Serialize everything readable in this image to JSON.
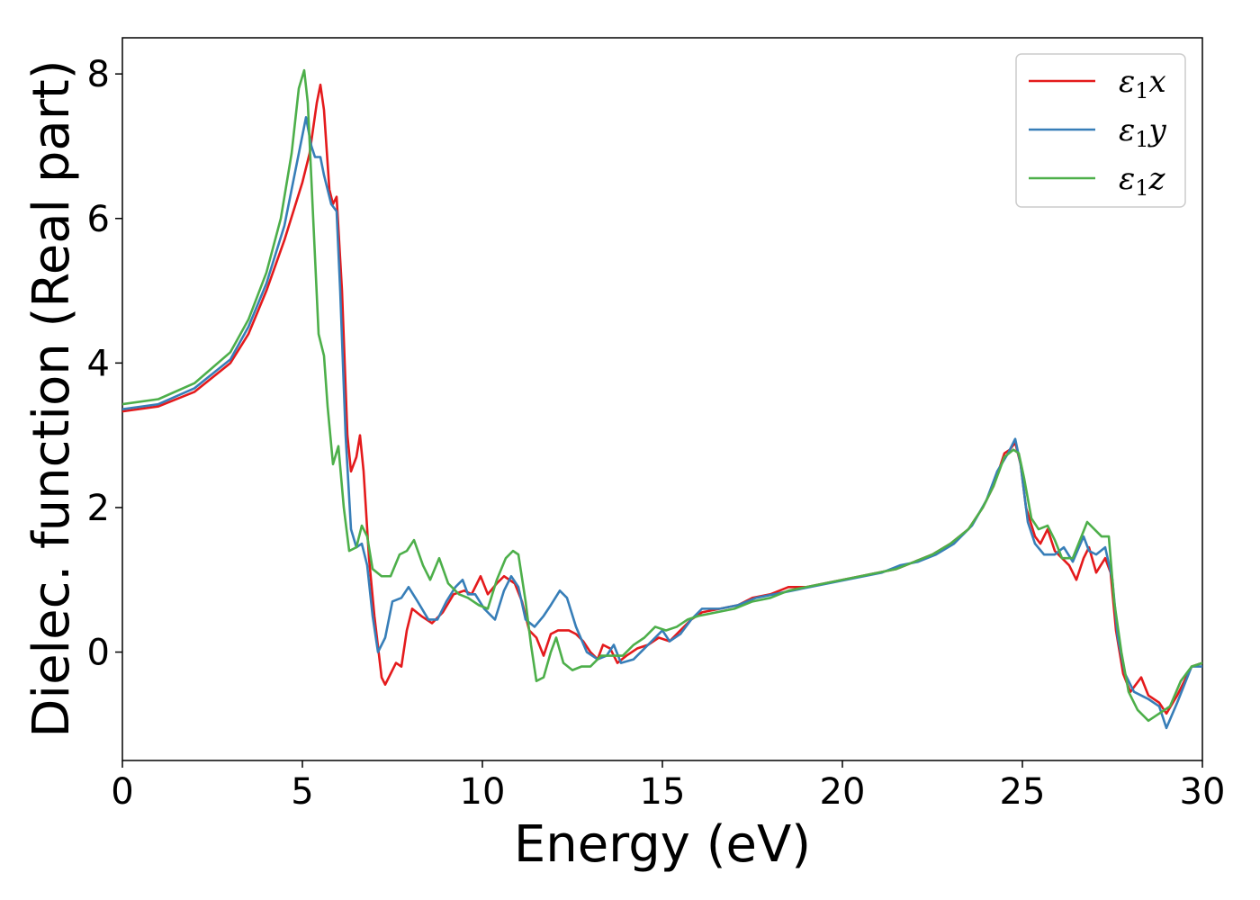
{
  "chart_data": {
    "type": "line",
    "title": "",
    "xlabel": "Energy (eV)",
    "ylabel": "Dielec. function (Real part)",
    "xlim": [
      0,
      30
    ],
    "ylim": [
      -1.5,
      8.5
    ],
    "xticks": [
      0,
      5,
      10,
      15,
      20,
      25,
      30
    ],
    "xtick_labels": [
      "0",
      "5",
      "10",
      "15",
      "20",
      "25",
      "30"
    ],
    "yticks": [
      0,
      2,
      4,
      6,
      8
    ],
    "ytick_labels": [
      "0",
      "2",
      "4",
      "6",
      "8"
    ],
    "grid": false,
    "legend_position": "top-right",
    "series": [
      {
        "name": "ε1x",
        "base": "ε",
        "sub": "1",
        "suffix": "x",
        "color": "#e41a1c",
        "points": [
          [
            0,
            3.33
          ],
          [
            1,
            3.4
          ],
          [
            2,
            3.6
          ],
          [
            3,
            4.0
          ],
          [
            3.5,
            4.4
          ],
          [
            4,
            5.0
          ],
          [
            4.5,
            5.7
          ],
          [
            5,
            6.5
          ],
          [
            5.2,
            6.9
          ],
          [
            5.4,
            7.6
          ],
          [
            5.5,
            7.85
          ],
          [
            5.6,
            7.5
          ],
          [
            5.75,
            6.4
          ],
          [
            5.85,
            6.2
          ],
          [
            5.95,
            6.3
          ],
          [
            6.1,
            5.0
          ],
          [
            6.25,
            3.0
          ],
          [
            6.35,
            2.5
          ],
          [
            6.5,
            2.7
          ],
          [
            6.6,
            3.0
          ],
          [
            6.7,
            2.5
          ],
          [
            6.85,
            1.3
          ],
          [
            7.0,
            0.5
          ],
          [
            7.2,
            -0.35
          ],
          [
            7.3,
            -0.45
          ],
          [
            7.45,
            -0.3
          ],
          [
            7.6,
            -0.15
          ],
          [
            7.75,
            -0.2
          ],
          [
            7.9,
            0.3
          ],
          [
            8.05,
            0.6
          ],
          [
            8.3,
            0.5
          ],
          [
            8.6,
            0.4
          ],
          [
            8.9,
            0.55
          ],
          [
            9.2,
            0.8
          ],
          [
            9.5,
            0.85
          ],
          [
            9.7,
            0.8
          ],
          [
            9.95,
            1.05
          ],
          [
            10.15,
            0.8
          ],
          [
            10.4,
            0.95
          ],
          [
            10.6,
            1.05
          ],
          [
            10.9,
            0.95
          ],
          [
            11.1,
            0.7
          ],
          [
            11.3,
            0.3
          ],
          [
            11.5,
            0.2
          ],
          [
            11.7,
            -0.05
          ],
          [
            11.9,
            0.25
          ],
          [
            12.1,
            0.3
          ],
          [
            12.4,
            0.3
          ],
          [
            12.6,
            0.25
          ],
          [
            12.8,
            0.15
          ],
          [
            13.0,
            0.0
          ],
          [
            13.2,
            -0.1
          ],
          [
            13.35,
            0.1
          ],
          [
            13.55,
            0.05
          ],
          [
            13.75,
            -0.15
          ],
          [
            14.0,
            -0.05
          ],
          [
            14.3,
            0.05
          ],
          [
            14.6,
            0.1
          ],
          [
            14.9,
            0.2
          ],
          [
            15.2,
            0.15
          ],
          [
            15.5,
            0.3
          ],
          [
            15.8,
            0.45
          ],
          [
            16.1,
            0.55
          ],
          [
            16.6,
            0.6
          ],
          [
            17.1,
            0.65
          ],
          [
            17.5,
            0.75
          ],
          [
            18.0,
            0.8
          ],
          [
            18.5,
            0.9
          ],
          [
            19.0,
            0.9
          ],
          [
            19.5,
            0.95
          ],
          [
            20.0,
            1.0
          ],
          [
            20.5,
            1.05
          ],
          [
            21.0,
            1.1
          ],
          [
            21.5,
            1.15
          ],
          [
            22.0,
            1.25
          ],
          [
            22.5,
            1.35
          ],
          [
            23.0,
            1.5
          ],
          [
            23.5,
            1.7
          ],
          [
            23.9,
            2.0
          ],
          [
            24.2,
            2.3
          ],
          [
            24.5,
            2.75
          ],
          [
            24.65,
            2.8
          ],
          [
            24.8,
            2.9
          ],
          [
            24.95,
            2.6
          ],
          [
            25.1,
            2.0
          ],
          [
            25.35,
            1.6
          ],
          [
            25.5,
            1.5
          ],
          [
            25.7,
            1.7
          ],
          [
            25.9,
            1.4
          ],
          [
            26.1,
            1.3
          ],
          [
            26.3,
            1.2
          ],
          [
            26.5,
            1.0
          ],
          [
            26.7,
            1.3
          ],
          [
            26.85,
            1.45
          ],
          [
            27.05,
            1.1
          ],
          [
            27.3,
            1.3
          ],
          [
            27.45,
            1.1
          ],
          [
            27.6,
            0.3
          ],
          [
            27.8,
            -0.3
          ],
          [
            28.0,
            -0.55
          ],
          [
            28.3,
            -0.35
          ],
          [
            28.5,
            -0.6
          ],
          [
            28.8,
            -0.7
          ],
          [
            29.0,
            -0.85
          ],
          [
            29.3,
            -0.6
          ],
          [
            29.7,
            -0.2
          ],
          [
            30,
            -0.15
          ]
        ]
      },
      {
        "name": "ε1y",
        "base": "ε",
        "sub": "1",
        "suffix": "y",
        "color": "#377eb8",
        "points": [
          [
            0,
            3.36
          ],
          [
            1,
            3.43
          ],
          [
            2,
            3.65
          ],
          [
            3,
            4.05
          ],
          [
            3.5,
            4.5
          ],
          [
            4,
            5.1
          ],
          [
            4.5,
            5.9
          ],
          [
            4.9,
            6.9
          ],
          [
            5.1,
            7.4
          ],
          [
            5.25,
            7.0
          ],
          [
            5.35,
            6.85
          ],
          [
            5.5,
            6.85
          ],
          [
            5.6,
            6.6
          ],
          [
            5.8,
            6.2
          ],
          [
            5.95,
            6.1
          ],
          [
            6.05,
            5.0
          ],
          [
            6.2,
            3.0
          ],
          [
            6.35,
            1.7
          ],
          [
            6.5,
            1.45
          ],
          [
            6.65,
            1.5
          ],
          [
            6.8,
            1.2
          ],
          [
            6.95,
            0.5
          ],
          [
            7.1,
            0.0
          ],
          [
            7.3,
            0.2
          ],
          [
            7.5,
            0.7
          ],
          [
            7.75,
            0.75
          ],
          [
            7.95,
            0.9
          ],
          [
            8.2,
            0.7
          ],
          [
            8.5,
            0.45
          ],
          [
            8.75,
            0.45
          ],
          [
            9.0,
            0.7
          ],
          [
            9.25,
            0.9
          ],
          [
            9.45,
            1.0
          ],
          [
            9.6,
            0.8
          ],
          [
            9.8,
            0.8
          ],
          [
            10.05,
            0.6
          ],
          [
            10.35,
            0.45
          ],
          [
            10.6,
            0.85
          ],
          [
            10.8,
            1.05
          ],
          [
            11.0,
            0.9
          ],
          [
            11.2,
            0.45
          ],
          [
            11.45,
            0.35
          ],
          [
            11.7,
            0.5
          ],
          [
            11.9,
            0.65
          ],
          [
            12.15,
            0.85
          ],
          [
            12.35,
            0.75
          ],
          [
            12.6,
            0.35
          ],
          [
            12.9,
            0.0
          ],
          [
            13.2,
            -0.1
          ],
          [
            13.45,
            -0.05
          ],
          [
            13.65,
            0.1
          ],
          [
            13.85,
            -0.15
          ],
          [
            14.2,
            -0.1
          ],
          [
            14.5,
            0.05
          ],
          [
            14.8,
            0.2
          ],
          [
            15.0,
            0.3
          ],
          [
            15.2,
            0.15
          ],
          [
            15.5,
            0.25
          ],
          [
            15.8,
            0.45
          ],
          [
            16.1,
            0.6
          ],
          [
            16.6,
            0.6
          ],
          [
            17.1,
            0.65
          ],
          [
            17.6,
            0.75
          ],
          [
            18.1,
            0.8
          ],
          [
            18.6,
            0.85
          ],
          [
            19.1,
            0.9
          ],
          [
            19.6,
            0.95
          ],
          [
            20.1,
            1.0
          ],
          [
            20.6,
            1.05
          ],
          [
            21.1,
            1.1
          ],
          [
            21.6,
            1.2
          ],
          [
            22.1,
            1.25
          ],
          [
            22.6,
            1.35
          ],
          [
            23.1,
            1.5
          ],
          [
            23.6,
            1.75
          ],
          [
            24.0,
            2.1
          ],
          [
            24.3,
            2.5
          ],
          [
            24.6,
            2.75
          ],
          [
            24.8,
            2.95
          ],
          [
            24.95,
            2.6
          ],
          [
            25.15,
            1.8
          ],
          [
            25.35,
            1.5
          ],
          [
            25.6,
            1.35
          ],
          [
            25.9,
            1.35
          ],
          [
            26.15,
            1.45
          ],
          [
            26.4,
            1.25
          ],
          [
            26.7,
            1.6
          ],
          [
            26.85,
            1.4
          ],
          [
            27.05,
            1.35
          ],
          [
            27.3,
            1.45
          ],
          [
            27.5,
            1.0
          ],
          [
            27.65,
            0.2
          ],
          [
            27.85,
            -0.3
          ],
          [
            28.1,
            -0.55
          ],
          [
            28.5,
            -0.65
          ],
          [
            28.8,
            -0.75
          ],
          [
            29.0,
            -1.05
          ],
          [
            29.3,
            -0.7
          ],
          [
            29.7,
            -0.2
          ],
          [
            30,
            -0.2
          ]
        ]
      },
      {
        "name": "ε1z",
        "base": "ε",
        "sub": "1",
        "suffix": "z",
        "color": "#4daf4a",
        "points": [
          [
            0,
            3.43
          ],
          [
            1,
            3.5
          ],
          [
            2,
            3.72
          ],
          [
            3,
            4.15
          ],
          [
            3.5,
            4.6
          ],
          [
            4,
            5.25
          ],
          [
            4.4,
            6.0
          ],
          [
            4.7,
            6.9
          ],
          [
            4.9,
            7.8
          ],
          [
            5.05,
            8.05
          ],
          [
            5.15,
            7.6
          ],
          [
            5.3,
            6.0
          ],
          [
            5.45,
            4.4
          ],
          [
            5.6,
            4.1
          ],
          [
            5.7,
            3.4
          ],
          [
            5.85,
            2.6
          ],
          [
            6.0,
            2.85
          ],
          [
            6.15,
            2.0
          ],
          [
            6.3,
            1.4
          ],
          [
            6.5,
            1.45
          ],
          [
            6.65,
            1.75
          ],
          [
            6.8,
            1.6
          ],
          [
            6.95,
            1.15
          ],
          [
            7.2,
            1.05
          ],
          [
            7.45,
            1.05
          ],
          [
            7.7,
            1.35
          ],
          [
            7.9,
            1.4
          ],
          [
            8.1,
            1.55
          ],
          [
            8.35,
            1.2
          ],
          [
            8.55,
            1.0
          ],
          [
            8.8,
            1.3
          ],
          [
            9.05,
            0.95
          ],
          [
            9.35,
            0.8
          ],
          [
            9.6,
            0.75
          ],
          [
            9.9,
            0.65
          ],
          [
            10.15,
            0.6
          ],
          [
            10.4,
            1.0
          ],
          [
            10.65,
            1.3
          ],
          [
            10.85,
            1.4
          ],
          [
            11.0,
            1.35
          ],
          [
            11.2,
            0.7
          ],
          [
            11.35,
            0.1
          ],
          [
            11.5,
            -0.4
          ],
          [
            11.7,
            -0.35
          ],
          [
            11.9,
            0.0
          ],
          [
            12.05,
            0.2
          ],
          [
            12.25,
            -0.15
          ],
          [
            12.5,
            -0.25
          ],
          [
            12.75,
            -0.2
          ],
          [
            13.0,
            -0.2
          ],
          [
            13.3,
            -0.05
          ],
          [
            13.6,
            -0.05
          ],
          [
            13.9,
            -0.05
          ],
          [
            14.2,
            0.1
          ],
          [
            14.5,
            0.2
          ],
          [
            14.8,
            0.35
          ],
          [
            15.1,
            0.3
          ],
          [
            15.4,
            0.35
          ],
          [
            15.7,
            0.45
          ],
          [
            16.0,
            0.5
          ],
          [
            16.5,
            0.55
          ],
          [
            17.0,
            0.6
          ],
          [
            17.5,
            0.7
          ],
          [
            18.0,
            0.75
          ],
          [
            18.5,
            0.85
          ],
          [
            19.0,
            0.9
          ],
          [
            19.5,
            0.95
          ],
          [
            20.0,
            1.0
          ],
          [
            20.5,
            1.05
          ],
          [
            21.0,
            1.1
          ],
          [
            21.5,
            1.15
          ],
          [
            22.0,
            1.25
          ],
          [
            22.5,
            1.35
          ],
          [
            23.0,
            1.5
          ],
          [
            23.5,
            1.7
          ],
          [
            23.9,
            2.0
          ],
          [
            24.2,
            2.3
          ],
          [
            24.5,
            2.7
          ],
          [
            24.75,
            2.8
          ],
          [
            24.9,
            2.75
          ],
          [
            25.05,
            2.4
          ],
          [
            25.25,
            1.85
          ],
          [
            25.45,
            1.7
          ],
          [
            25.7,
            1.75
          ],
          [
            25.9,
            1.55
          ],
          [
            26.1,
            1.3
          ],
          [
            26.4,
            1.3
          ],
          [
            26.6,
            1.55
          ],
          [
            26.8,
            1.8
          ],
          [
            27.0,
            1.7
          ],
          [
            27.2,
            1.6
          ],
          [
            27.4,
            1.6
          ],
          [
            27.55,
            0.7
          ],
          [
            27.75,
            0.0
          ],
          [
            27.95,
            -0.55
          ],
          [
            28.2,
            -0.8
          ],
          [
            28.5,
            -0.95
          ],
          [
            28.8,
            -0.85
          ],
          [
            29.1,
            -0.75
          ],
          [
            29.4,
            -0.4
          ],
          [
            29.7,
            -0.2
          ],
          [
            30,
            -0.15
          ]
        ]
      }
    ]
  }
}
